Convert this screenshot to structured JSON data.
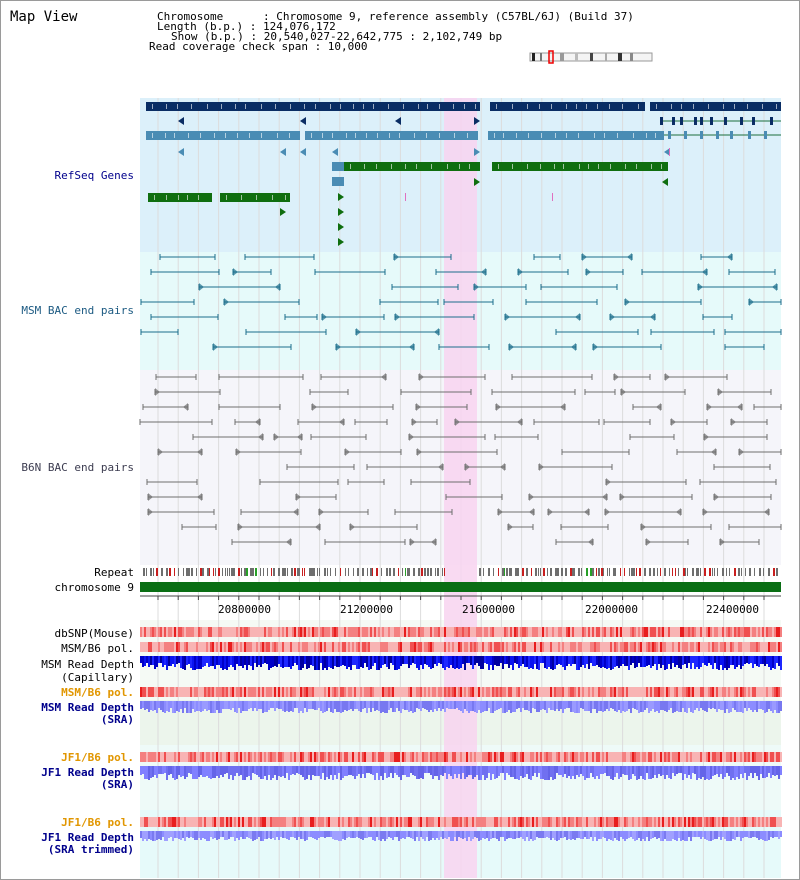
{
  "view_title": "Map View",
  "header": {
    "chromosome_line": "Chromosome      : Chromosome 9, reference assembly (C57BL/6J) (Build 37)",
    "length_line": "Length (b.p.) : 124,076,172",
    "show_line": "Show (b.p.) : 20,540,027-22,642,775 : 2,102,749 bp",
    "coverage_line": "Read coverage check span : 10,000"
  },
  "tracks": {
    "refseq": "RefSeq Genes",
    "msm_bac": "MSM BAC end pairs",
    "b6n_bac": "B6N BAC end pairs",
    "repeat": "Repeat",
    "chromosome": "chromosome 9",
    "dbsnp": "dbSNP(Mouse)",
    "msm_b6_pol": "MSM/B6 pol.",
    "msm_depth_cap_1": "MSM Read Depth",
    "msm_depth_cap_2": "(Capillary)",
    "msm_b6_pol_sra": "MSM/B6 pol.",
    "msm_depth_sra_1": "MSM Read Depth",
    "msm_depth_sra_2": "(SRA)",
    "jf1_b6_pol": "JF1/B6 pol.",
    "jf1_depth_1": "JF1 Read Depth",
    "jf1_depth_2": "(SRA)",
    "jf1_b6_pol_trim": "JF1/B6 pol.",
    "jf1_trim_1": "JF1 Read Depth",
    "jf1_trim_2": "(SRA trimmed)"
  },
  "axis": {
    "ticks": [
      "20800000",
      "21200000",
      "21600000",
      "22000000",
      "22400000"
    ]
  },
  "colors": {
    "refseq_bg": "#dcf0fa",
    "msm_bg": "#e6fafa",
    "b6n_bg": "#f5f5fa",
    "highlight": "#f8d4f0",
    "gene_dark": "#0a2d64",
    "gene_mid": "#4a8cb4",
    "gene_green": "#0f6e0f",
    "msm_pair": "#1c6e8c",
    "b6n_pair": "#6e6e6e",
    "chrom_bar": "#0a6e14",
    "label_blue": "#00008c",
    "label_orange": "#e19600"
  }
}
